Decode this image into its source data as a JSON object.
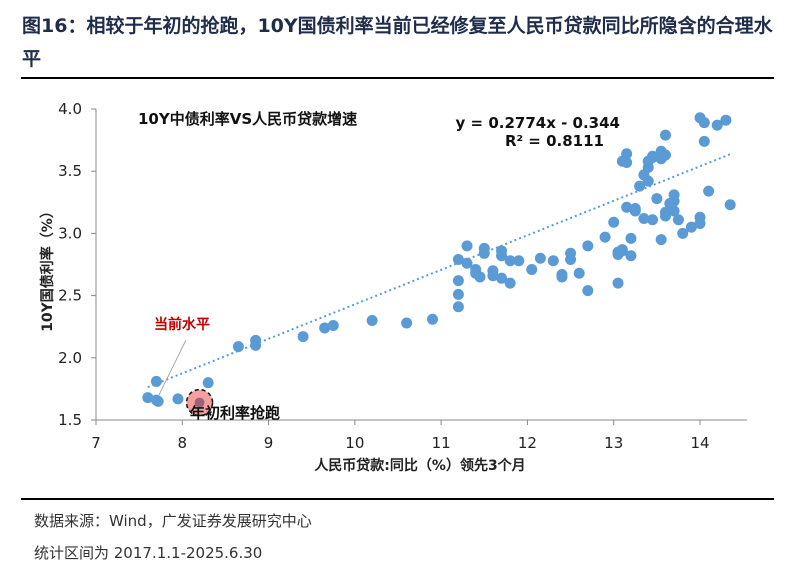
{
  "title": "图16：相较于年初的抢跑，10Y国债利率当前已经修复至人民币贷款同比所隐含的合理水平",
  "source": "数据来源：Wind，广发证券发展研究中心",
  "period": "统计区间为 2017.1.1-2025.6.30",
  "chart_data": {
    "type": "scatter",
    "title": "10Y中债利率VS人民币贷款增速",
    "xlabel": "人民币贷款:同比（%）领先3个月",
    "ylabel": "10Y国债利率（%）",
    "xlim": [
      7,
      14.5
    ],
    "ylim": [
      1.5,
      4.0
    ],
    "xticks": [
      "7",
      "8",
      "9",
      "10",
      "11",
      "12",
      "13",
      "14"
    ],
    "yticks": [
      "1.5",
      "2.0",
      "2.5",
      "3.0",
      "3.5",
      "4.0"
    ],
    "grid": false,
    "point_color": "#5b9bd5",
    "trendline": {
      "equation": "y = 0.2774x - 0.344",
      "r2": "R² = 0.8111",
      "slope": 0.2774,
      "intercept": -0.344,
      "x_range": [
        7.6,
        14.35
      ]
    },
    "annotations": [
      {
        "text": "当前水平",
        "x": 7.7,
        "y": 1.66,
        "color": "#c00000"
      },
      {
        "text": "年初利率抢跑",
        "x": 8.2,
        "y": 1.64,
        "highlight_color": "#f4a0a0"
      }
    ],
    "points": [
      [
        7.6,
        1.68
      ],
      [
        7.7,
        1.81
      ],
      [
        7.7,
        1.66
      ],
      [
        7.72,
        1.65
      ],
      [
        7.95,
        1.67
      ],
      [
        8.3,
        1.8
      ],
      [
        8.2,
        1.63
      ],
      [
        8.65,
        2.09
      ],
      [
        8.85,
        2.14
      ],
      [
        8.85,
        2.1
      ],
      [
        9.4,
        2.17
      ],
      [
        9.65,
        2.24
      ],
      [
        9.75,
        2.26
      ],
      [
        10.2,
        2.3
      ],
      [
        10.6,
        2.28
      ],
      [
        10.9,
        2.31
      ],
      [
        11.2,
        2.41
      ],
      [
        11.2,
        2.51
      ],
      [
        11.2,
        2.62
      ],
      [
        11.2,
        2.79
      ],
      [
        11.3,
        2.76
      ],
      [
        11.3,
        2.9
      ],
      [
        11.5,
        2.88
      ],
      [
        11.5,
        2.84
      ],
      [
        11.7,
        2.86
      ],
      [
        11.7,
        2.82
      ],
      [
        11.4,
        2.68
      ],
      [
        11.4,
        2.71
      ],
      [
        11.45,
        2.65
      ],
      [
        11.6,
        2.7
      ],
      [
        11.6,
        2.66
      ],
      [
        11.7,
        2.64
      ],
      [
        11.8,
        2.6
      ],
      [
        11.8,
        2.78
      ],
      [
        11.9,
        2.78
      ],
      [
        12.05,
        2.71
      ],
      [
        12.15,
        2.8
      ],
      [
        12.3,
        2.78
      ],
      [
        12.4,
        2.67
      ],
      [
        12.4,
        2.65
      ],
      [
        12.5,
        2.84
      ],
      [
        12.5,
        2.79
      ],
      [
        12.6,
        2.68
      ],
      [
        12.7,
        2.9
      ],
      [
        12.7,
        2.54
      ],
      [
        12.9,
        2.97
      ],
      [
        13.05,
        2.85
      ],
      [
        13.05,
        2.83
      ],
      [
        13.05,
        2.6
      ],
      [
        13.1,
        2.87
      ],
      [
        13.1,
        2.86
      ],
      [
        13.2,
        2.82
      ],
      [
        13.2,
        2.96
      ],
      [
        13.0,
        3.09
      ],
      [
        13.1,
        3.58
      ],
      [
        13.15,
        3.57
      ],
      [
        13.15,
        3.64
      ],
      [
        13.15,
        3.21
      ],
      [
        13.25,
        3.18
      ],
      [
        13.25,
        3.2
      ],
      [
        13.3,
        3.38
      ],
      [
        13.35,
        3.47
      ],
      [
        13.4,
        3.53
      ],
      [
        13.4,
        3.58
      ],
      [
        13.45,
        3.61
      ],
      [
        13.45,
        3.62
      ],
      [
        13.4,
        3.42
      ],
      [
        13.35,
        3.12
      ],
      [
        13.45,
        3.11
      ],
      [
        13.5,
        3.28
      ],
      [
        13.55,
        3.66
      ],
      [
        13.55,
        3.6
      ],
      [
        13.6,
        3.79
      ],
      [
        13.6,
        3.63
      ],
      [
        13.6,
        3.17
      ],
      [
        13.6,
        3.14
      ],
      [
        13.55,
        2.95
      ],
      [
        13.65,
        3.24
      ],
      [
        13.7,
        3.31
      ],
      [
        13.7,
        3.26
      ],
      [
        13.7,
        3.18
      ],
      [
        13.75,
        3.11
      ],
      [
        13.8,
        3.0
      ],
      [
        13.9,
        3.05
      ],
      [
        14.0,
        3.08
      ],
      [
        14.0,
        3.93
      ],
      [
        14.05,
        3.89
      ],
      [
        14.05,
        3.74
      ],
      [
        14.1,
        3.34
      ],
      [
        14.2,
        3.87
      ],
      [
        14.3,
        3.91
      ],
      [
        14.35,
        3.23
      ],
      [
        14.0,
        3.13
      ]
    ]
  }
}
